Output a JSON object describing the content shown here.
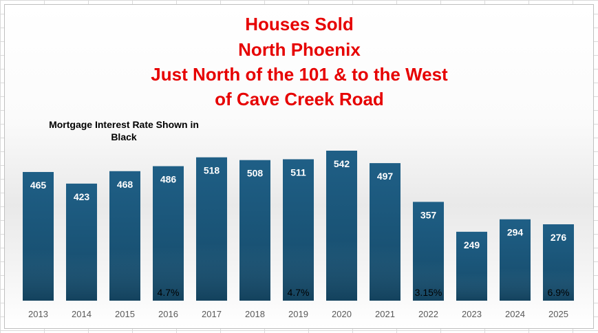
{
  "chart_data": {
    "type": "bar",
    "title_lines": [
      "Houses Sold",
      "North Phoenix",
      "Just North of the 101 & to the West",
      "of Cave Creek Road"
    ],
    "annotation_lines": [
      "Mortgage Interest Rate Shown in",
      "Black"
    ],
    "categories": [
      "2013",
      "2014",
      "2015",
      "2016",
      "2017",
      "2018",
      "2019",
      "2020",
      "2021",
      "2022",
      "2023",
      "2024",
      "2025"
    ],
    "values": [
      465,
      423,
      468,
      486,
      518,
      508,
      511,
      542,
      497,
      357,
      249,
      294,
      276
    ],
    "rate_labels": [
      "",
      "",
      "",
      "4.7%",
      "",
      "",
      "4.7%",
      "",
      "",
      "3.15%",
      "",
      "",
      "6.9%"
    ],
    "ylim": [
      0,
      700
    ],
    "grid": false,
    "legend": "none",
    "colors": {
      "bar_top": "#1f5f86",
      "bar_bottom": "#154a69",
      "title": "#e60000",
      "value_label": "#ffffff",
      "rate_label": "#000000",
      "tick_label": "#595959"
    }
  }
}
